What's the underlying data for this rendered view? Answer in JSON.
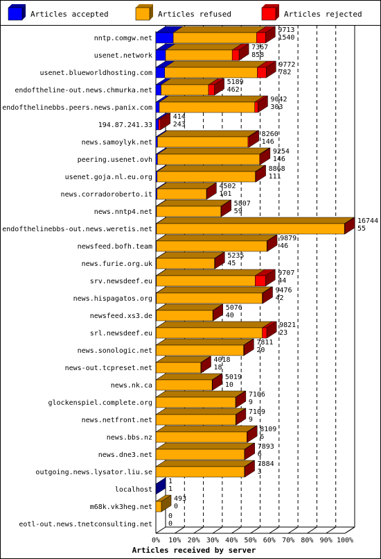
{
  "legend": [
    {
      "label": "Articles accepted",
      "color": "#0000ff"
    },
    {
      "label": "Articles refused",
      "color": "#ffaa00"
    },
    {
      "label": "Articles rejected",
      "color": "#ff0000"
    }
  ],
  "chart_data": {
    "type": "bar",
    "orientation": "horizontal",
    "stacked": true,
    "xlabel": "Articles received by server",
    "xlim": [
      0,
      100
    ],
    "x_ticks": [
      "0%",
      "10%",
      "20%",
      "30%",
      "40%",
      "50%",
      "60%",
      "70%",
      "80%",
      "90%",
      "100%"
    ],
    "scale_max_articles": 16744,
    "grid": "dashed vertical",
    "legend_position": "top",
    "rows": [
      {
        "server": "nntp.comgw.net",
        "total": "9713",
        "second": "1540",
        "accepted": 1540,
        "refused": 7379,
        "rejected": 794
      },
      {
        "server": "usenet.network",
        "total": "7367",
        "second": "858",
        "accepted": 858,
        "refused": 5900,
        "rejected": 609
      },
      {
        "server": "usenet.blueworldhosting.com",
        "total": "9772",
        "second": "782",
        "accepted": 782,
        "refused": 8200,
        "rejected": 790
      },
      {
        "server": "endoftheline-out.news.chmurka.net",
        "total": "5189",
        "second": "462",
        "accepted": 462,
        "refused": 4200,
        "rejected": 527
      },
      {
        "server": "endofthelinebbs.peers.news.panix.com",
        "total": "9042",
        "second": "303",
        "accepted": 303,
        "refused": 8450,
        "rejected": 289
      },
      {
        "server": "194.87.241.33",
        "total": "414",
        "second": "243",
        "accepted": 243,
        "refused": 0,
        "rejected": 171
      },
      {
        "server": "news.samoylyk.net",
        "total": "8260",
        "second": "146",
        "accepted": 146,
        "refused": 8010,
        "rejected": 104
      },
      {
        "server": "peering.usenet.ovh",
        "total": "9254",
        "second": "146",
        "accepted": 146,
        "refused": 9040,
        "rejected": 68
      },
      {
        "server": "usenet.goja.nl.eu.org",
        "total": "8868",
        "second": "111",
        "accepted": 111,
        "refused": 8700,
        "rejected": 57
      },
      {
        "server": "news.corradoroberto.it",
        "total": "4502",
        "second": "101",
        "accepted": 101,
        "refused": 4380,
        "rejected": 21
      },
      {
        "server": "news.nntp4.net",
        "total": "5807",
        "second": "59",
        "accepted": 59,
        "refused": 5700,
        "rejected": 48
      },
      {
        "server": "endofthelinebbs-out.news.weretis.net",
        "total": "16744",
        "second": "55",
        "accepted": 55,
        "refused": 16640,
        "rejected": 49
      },
      {
        "server": "newsfeed.bofh.team",
        "total": "9879",
        "second": "46",
        "accepted": 46,
        "refused": 9780,
        "rejected": 53
      },
      {
        "server": "news.furie.org.uk",
        "total": "5235",
        "second": "45",
        "accepted": 45,
        "refused": 5150,
        "rejected": 40
      },
      {
        "server": "srv.newsdeef.eu",
        "total": "9707",
        "second": "44",
        "accepted": 44,
        "refused": 8750,
        "rejected": 913
      },
      {
        "server": "news.hispagatos.org",
        "total": "9476",
        "second": "42",
        "accepted": 42,
        "refused": 9380,
        "rejected": 54
      },
      {
        "server": "newsfeed.xs3.de",
        "total": "5076",
        "second": "40",
        "accepted": 40,
        "refused": 5000,
        "rejected": 36
      },
      {
        "server": "srl.newsdeef.eu",
        "total": "9821",
        "second": "23",
        "accepted": 23,
        "refused": 9400,
        "rejected": 398
      },
      {
        "server": "news.sonologic.net",
        "total": "7811",
        "second": "20",
        "accepted": 20,
        "refused": 7750,
        "rejected": 41
      },
      {
        "server": "news-out.tcpreset.net",
        "total": "4018",
        "second": "18",
        "accepted": 18,
        "refused": 3960,
        "rejected": 40
      },
      {
        "server": "news.nk.ca",
        "total": "5019",
        "second": "10",
        "accepted": 10,
        "refused": 4970,
        "rejected": 39
      },
      {
        "server": "glockenspiel.complete.org",
        "total": "7106",
        "second": "9",
        "accepted": 9,
        "refused": 7050,
        "rejected": 47
      },
      {
        "server": "news.netfront.net",
        "total": "7109",
        "second": "9",
        "accepted": 9,
        "refused": 7060,
        "rejected": 40
      },
      {
        "server": "news.bbs.nz",
        "total": "8109",
        "second": "6",
        "accepted": 6,
        "refused": 8050,
        "rejected": 53
      },
      {
        "server": "news.dne3.net",
        "total": "7893",
        "second": "6",
        "accepted": 6,
        "refused": 7840,
        "rejected": 47
      },
      {
        "server": "outgoing.news.lysator.liu.se",
        "total": "7884",
        "second": "3",
        "accepted": 3,
        "refused": 7840,
        "rejected": 41
      },
      {
        "server": "localhost",
        "total": "1",
        "second": "1",
        "accepted": 1,
        "refused": 0,
        "rejected": 0
      },
      {
        "server": "m68k.vk3heg.net",
        "total": "493",
        "second": "0",
        "accepted": 0,
        "refused": 493,
        "rejected": 0
      },
      {
        "server": "eotl-out.news.tnetconsulting.net",
        "total": "0",
        "second": "0",
        "accepted": 0,
        "refused": 0,
        "rejected": 0
      }
    ]
  }
}
